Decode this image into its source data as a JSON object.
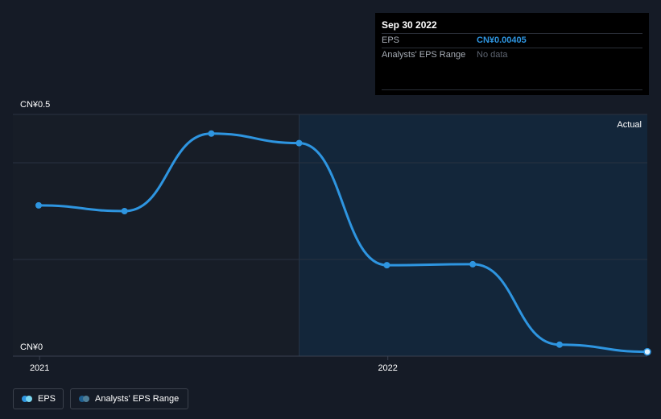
{
  "tooltip": {
    "date": "Sep 30 2022",
    "rows": [
      {
        "label": "EPS",
        "value": "CN¥0.00405"
      },
      {
        "label": "Analysts' EPS Range",
        "value": "No data"
      }
    ]
  },
  "legend": [
    {
      "label": "EPS",
      "colors": [
        "#2e95e0",
        "#7ad6f0"
      ]
    },
    {
      "label": "Analysts' EPS Range",
      "colors": [
        "#1f5f8f",
        "#4e7e98"
      ]
    }
  ],
  "colors": {
    "background": "#151b26",
    "line": "#2e95e0",
    "actual_region": "#13263a",
    "grid": "#2a3140"
  },
  "chart_data": {
    "type": "line",
    "region_label": "Actual",
    "y_tick_labels": [
      "CN¥0.5",
      "CN¥0"
    ],
    "x_tick_labels": [
      "2021",
      "2022"
    ],
    "x_ticks": [
      "2021-01-01",
      "2022-01-01"
    ],
    "xlim": [
      "2020-12-31",
      "2022-09-30"
    ],
    "ylim": [
      0,
      0.5
    ],
    "actual_region_start": "2021-09-30",
    "series": [
      {
        "name": "EPS",
        "x": [
          "2020-12-31",
          "2021-03-31",
          "2021-06-30",
          "2021-09-30",
          "2021-12-31",
          "2022-03-31",
          "2022-06-30",
          "2022-09-30"
        ],
        "values": [
          0.31,
          0.298,
          0.46,
          0.44,
          0.185,
          0.187,
          0.019,
          0.00405
        ]
      }
    ]
  }
}
